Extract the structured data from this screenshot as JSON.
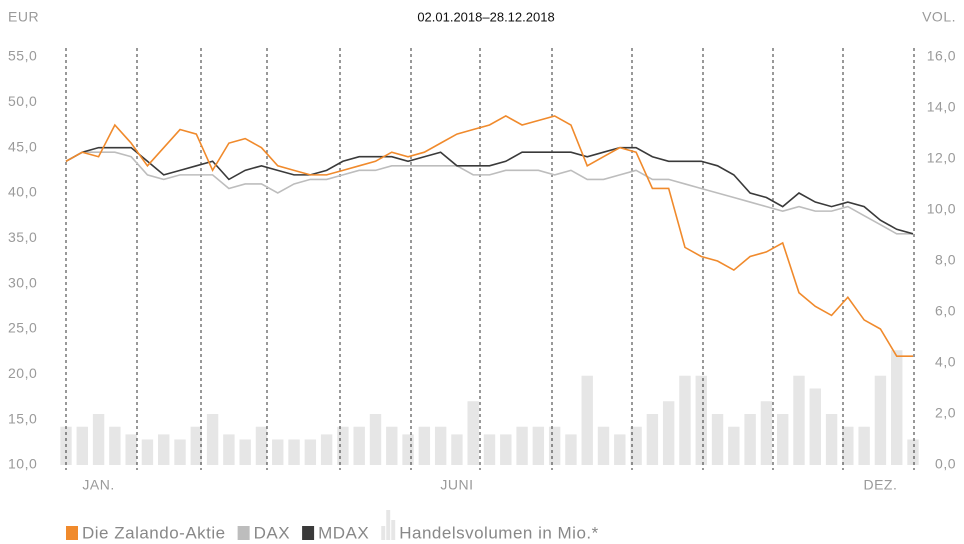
{
  "chart_data": {
    "type": "line",
    "title": "02.01.2018–28.12.2018",
    "ylabel": "EUR",
    "y2label": "VOL.",
    "categories": [
      null,
      null,
      "JAN.",
      null,
      null,
      null,
      null,
      null,
      null,
      null,
      null,
      null,
      null,
      null,
      null,
      null,
      null,
      null,
      null,
      null,
      null,
      null,
      null,
      null,
      "JUNI",
      null,
      null,
      null,
      null,
      null,
      null,
      null,
      null,
      null,
      null,
      null,
      null,
      null,
      null,
      null,
      null,
      null,
      null,
      null,
      null,
      null,
      null,
      null,
      null,
      null,
      "DEZ.",
      null,
      null
    ],
    "ylim": [
      10,
      55
    ],
    "yticks": [
      {
        "value": 10,
        "label": "10,0"
      },
      {
        "value": 15,
        "label": "15,0"
      },
      {
        "value": 20,
        "label": "20,0"
      },
      {
        "value": 25,
        "label": "25,0"
      },
      {
        "value": 30,
        "label": "30,0"
      },
      {
        "value": 35,
        "label": "35,0"
      },
      {
        "value": 40,
        "label": "40,0"
      },
      {
        "value": 45,
        "label": "45,0"
      },
      {
        "value": 50,
        "label": "50,0"
      },
      {
        "value": 55,
        "label": "55,0"
      }
    ],
    "y2lim": [
      0,
      16
    ],
    "y2ticks": [
      {
        "value": 0,
        "label": "0,0"
      },
      {
        "value": 2,
        "label": "2,0"
      },
      {
        "value": 4,
        "label": "4,0"
      },
      {
        "value": 6,
        "label": "6,0"
      },
      {
        "value": 8,
        "label": "8,0"
      },
      {
        "value": 10,
        "label": "10,0"
      },
      {
        "value": 12,
        "label": "12,0"
      },
      {
        "value": 14,
        "label": "14,0"
      },
      {
        "value": 16,
        "label": "16,0"
      }
    ],
    "grid": false,
    "series": [
      {
        "name": "Die Zalando-Aktie",
        "color": "#f08a2c",
        "values": [
          43.5,
          44.5,
          44,
          47.5,
          45.5,
          43,
          45,
          47,
          46.5,
          42.5,
          45.5,
          46,
          45,
          43,
          42.5,
          42,
          42,
          42.5,
          43,
          43.5,
          44.5,
          44,
          44.5,
          45.5,
          46.5,
          47,
          47.5,
          48.5,
          47.5,
          48,
          48.5,
          47.5,
          43,
          44,
          45,
          44.5,
          40.5,
          40.5,
          34,
          33,
          32.5,
          31.5,
          33,
          33.5,
          34.5,
          29,
          27.5,
          26.5,
          28.5,
          26,
          25,
          22,
          22
        ]
      },
      {
        "name": "DAX",
        "color": "#bdbdbd",
        "values": [
          43.5,
          44.5,
          44.5,
          44.5,
          44,
          42,
          41.5,
          42,
          42,
          42,
          40.5,
          41,
          41,
          40,
          41,
          41.5,
          41.5,
          42,
          42.5,
          42.5,
          43,
          43,
          43,
          43,
          43,
          42,
          42,
          42.5,
          42.5,
          42.5,
          42,
          42.5,
          41.5,
          41.5,
          42,
          42.5,
          41.5,
          41.5,
          41,
          40.5,
          40,
          39.5,
          39,
          38.5,
          38,
          38.5,
          38,
          38,
          38.5,
          37.5,
          36.5,
          35.5,
          35.5
        ]
      },
      {
        "name": "MDAX",
        "color": "#3a3a3a",
        "values": [
          43.5,
          44.5,
          45,
          45,
          45,
          43.5,
          42,
          42.5,
          43,
          43.5,
          41.5,
          42.5,
          43,
          42.5,
          42,
          42,
          42.5,
          43.5,
          44,
          44,
          44,
          43.5,
          44,
          44.5,
          43,
          43,
          43,
          43.5,
          44.5,
          44.5,
          44.5,
          44.5,
          44,
          44.5,
          45,
          45,
          44,
          43.5,
          43.5,
          43.5,
          43,
          42,
          40,
          39.5,
          38.5,
          40,
          39,
          38.5,
          39,
          38.5,
          37,
          36,
          35.5
        ]
      },
      {
        "name": "Handelsvolumen in Mio.*",
        "color": "#e6e6e6",
        "axis": "y2",
        "values": [
          1.5,
          1.5,
          2.0,
          1.5,
          1.2,
          1.0,
          1.2,
          1.0,
          1.5,
          2.0,
          1.2,
          1.0,
          1.5,
          1.0,
          1.0,
          1.0,
          1.2,
          1.5,
          1.5,
          2.0,
          1.5,
          1.2,
          1.5,
          1.5,
          1.2,
          2.5,
          1.2,
          1.2,
          1.5,
          1.5,
          1.5,
          1.2,
          3.5,
          1.5,
          1.2,
          1.5,
          2.0,
          2.5,
          3.5,
          3.5,
          2.0,
          1.5,
          2.0,
          2.5,
          2.0,
          3.5,
          3.0,
          2.0,
          1.5,
          1.5,
          3.5,
          4.5,
          1.0
        ]
      }
    ]
  }
}
